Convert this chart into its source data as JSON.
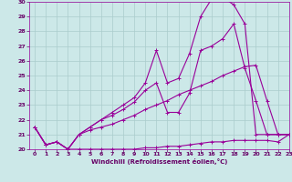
{
  "background_color": "#cce8e8",
  "grid_color": "#aacccc",
  "line_color": "#990099",
  "marker_color": "#990099",
  "xlabel": "Windchill (Refroidissement éolien,°C)",
  "xlabel_color": "#660066",
  "ylabel_color": "#660066",
  "xlim": [
    -0.5,
    23
  ],
  "ylim": [
    20,
    30
  ],
  "yticks": [
    20,
    21,
    22,
    23,
    24,
    25,
    26,
    27,
    28,
    29,
    30
  ],
  "xticks": [
    0,
    1,
    2,
    3,
    4,
    5,
    6,
    7,
    8,
    9,
    10,
    11,
    12,
    13,
    14,
    15,
    16,
    17,
    18,
    19,
    20,
    21,
    22,
    23
  ],
  "series": [
    {
      "x": [
        0,
        1,
        2,
        3,
        4,
        5,
        6,
        7,
        8,
        9,
        10,
        11,
        12,
        13,
        14,
        15,
        16,
        17,
        18,
        19,
        20,
        21,
        22,
        23
      ],
      "y": [
        21.5,
        20.3,
        20.5,
        20.0,
        20.0,
        20.0,
        20.0,
        20.0,
        20.0,
        20.0,
        20.1,
        20.1,
        20.2,
        20.2,
        20.3,
        20.4,
        20.5,
        20.5,
        20.6,
        20.6,
        20.6,
        20.6,
        20.5,
        21.0
      ]
    },
    {
      "x": [
        0,
        1,
        2,
        3,
        4,
        5,
        6,
        7,
        8,
        9,
        10,
        11,
        12,
        13,
        14,
        15,
        16,
        17,
        18,
        19,
        20,
        21,
        22,
        23
      ],
      "y": [
        21.5,
        20.3,
        20.5,
        20.0,
        21.0,
        21.3,
        21.5,
        21.7,
        22.0,
        22.3,
        22.7,
        23.0,
        23.3,
        23.7,
        24.0,
        24.3,
        24.6,
        25.0,
        25.3,
        25.6,
        25.7,
        23.3,
        21.0,
        21.0
      ]
    },
    {
      "x": [
        0,
        1,
        2,
        3,
        4,
        5,
        6,
        7,
        8,
        9,
        10,
        11,
        12,
        13,
        14,
        15,
        16,
        17,
        18,
        19,
        20,
        21,
        22,
        23
      ],
      "y": [
        21.5,
        20.3,
        20.5,
        20.0,
        21.0,
        21.5,
        22.0,
        22.3,
        22.7,
        23.2,
        24.0,
        24.5,
        22.5,
        22.5,
        23.8,
        26.7,
        27.0,
        27.5,
        28.5,
        25.5,
        23.3,
        21.0,
        21.0,
        21.0
      ]
    },
    {
      "x": [
        0,
        1,
        2,
        3,
        4,
        5,
        6,
        7,
        8,
        9,
        10,
        11,
        12,
        13,
        14,
        15,
        16,
        17,
        18,
        19,
        20,
        21,
        22,
        23
      ],
      "y": [
        21.5,
        20.3,
        20.5,
        20.0,
        21.0,
        21.5,
        22.0,
        22.5,
        23.0,
        23.5,
        24.5,
        26.7,
        24.5,
        24.8,
        26.5,
        29.0,
        30.2,
        30.3,
        29.8,
        28.5,
        21.0,
        21.0,
        21.0,
        21.0
      ]
    }
  ]
}
